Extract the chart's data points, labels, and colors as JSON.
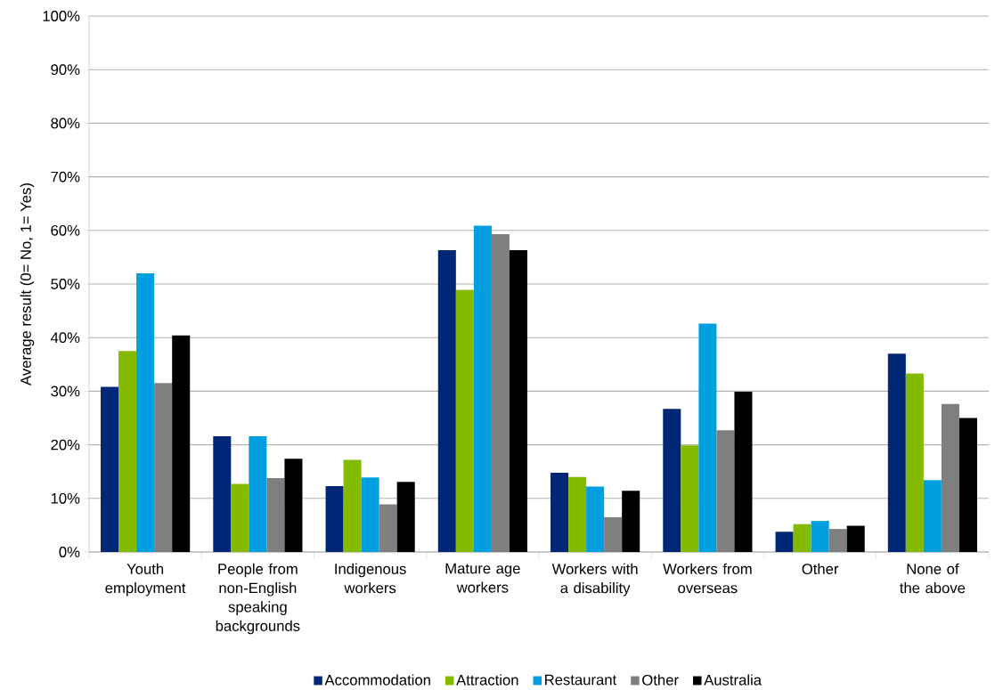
{
  "chart_data": {
    "type": "bar",
    "ylabel": "Average result (0= No, 1= Yes)",
    "categories": [
      "Youth employment",
      "People from non-English speaking backgrounds",
      "Indigenous workers",
      "Mature age workers",
      "Workers with a disability",
      "Workers from overseas",
      "Other",
      "None of the above"
    ],
    "series": [
      {
        "name": "Accommodation",
        "color": "#002776",
        "values": [
          30.8,
          21.6,
          12.3,
          56.3,
          14.8,
          26.7,
          3.8,
          37.0
        ]
      },
      {
        "name": "Attraction",
        "color": "#84bb00",
        "values": [
          37.5,
          12.7,
          17.2,
          48.9,
          14.0,
          19.9,
          5.2,
          33.3
        ]
      },
      {
        "name": "Restaurant",
        "color": "#00a0e0",
        "values": [
          52.0,
          21.6,
          13.9,
          60.9,
          12.2,
          42.6,
          5.8,
          13.4
        ]
      },
      {
        "name": "Other",
        "color": "#7f7f7f",
        "values": [
          31.5,
          13.8,
          8.9,
          59.3,
          6.5,
          22.7,
          4.3,
          27.6
        ]
      },
      {
        "name": "Australia",
        "color": "#000000",
        "values": [
          40.4,
          17.4,
          13.1,
          56.3,
          11.4,
          29.9,
          4.9,
          25.0
        ]
      }
    ],
    "ylim": [
      0,
      100
    ],
    "yticks": [
      {
        "value": 0,
        "label": "0%"
      },
      {
        "value": 10,
        "label": "10%"
      },
      {
        "value": 20,
        "label": "20%"
      },
      {
        "value": 30,
        "label": "30%"
      },
      {
        "value": 40,
        "label": "40%"
      },
      {
        "value": 50,
        "label": "50%"
      },
      {
        "value": 60,
        "label": "60%"
      },
      {
        "value": 70,
        "label": "70%"
      },
      {
        "value": 80,
        "label": "80%"
      },
      {
        "value": 90,
        "label": "90%"
      },
      {
        "value": 100,
        "label": "100%"
      }
    ],
    "grid": "y",
    "legend": "bottom"
  }
}
